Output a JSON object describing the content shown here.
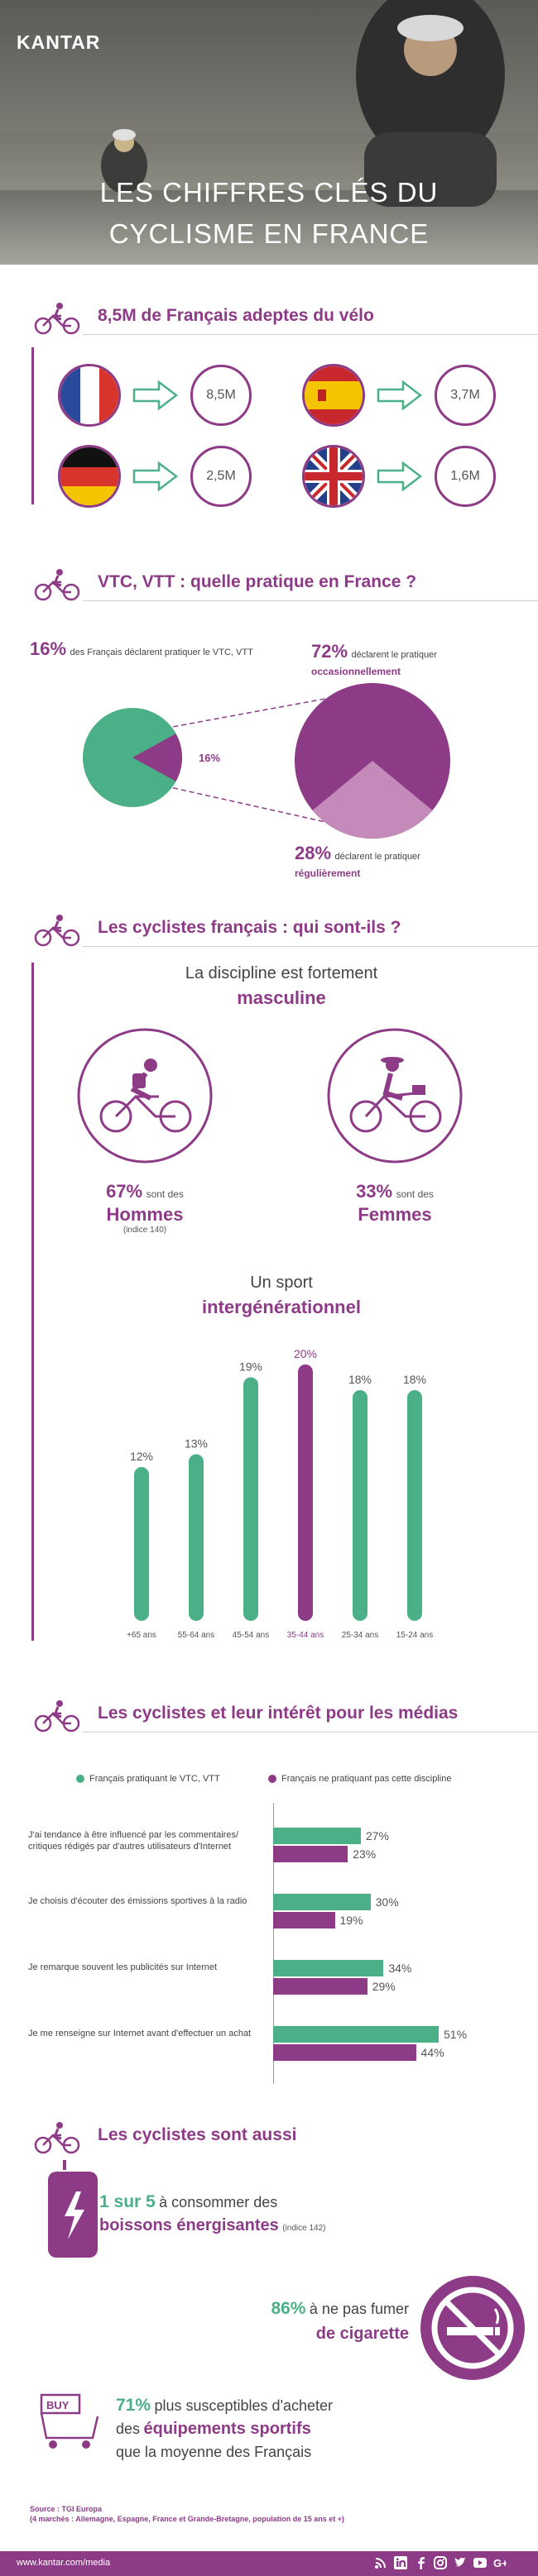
{
  "brand": "KANTAR",
  "hero": {
    "title_line1": "LES CHIFFRES CLÉS DU",
    "title_line2": "CYCLISME EN FRANCE"
  },
  "sections": {
    "s1": "8,5M de Français adeptes du vélo",
    "s2": "VTC, VTT : quelle pratique en France ?",
    "s3": "Les cyclistes français : qui sont-ils ?",
    "s4": "Les cyclistes et leur intérêt pour les médias",
    "s5": "Les cyclistes sont aussi"
  },
  "countries": [
    {
      "flag": "france-flag",
      "value": "8,5M"
    },
    {
      "flag": "spain-flag",
      "value": "3,7M"
    },
    {
      "flag": "germany-flag",
      "value": "2,5M"
    },
    {
      "flag": "uk-flag",
      "value": "1,6M"
    }
  ],
  "practice": {
    "p16_pct": "16%",
    "p16_text": "des Français déclarent pratiquer le VTC, VTT",
    "p16_slice": "16%",
    "p72_pct": "72%",
    "p72_text": "déclarent le pratiquer",
    "p72_highlight": "occasionnellement",
    "p28_pct": "28%",
    "p28_text": "déclarent le pratiquer",
    "p28_highlight": "régulièrement",
    "chart_data": {
      "type": "pie",
      "pies": [
        {
          "name": "",
          "slices": [
            {
              "label": "Pratiquent VTC, VTT",
              "value": 16
            },
            {
              "label": "",
              "value": 84
            }
          ]
        },
        {
          "name": "",
          "slices": [
            {
              "label": "occasionnellement",
              "value": 72
            },
            {
              "label": "régulièrement",
              "value": 28
            }
          ]
        }
      ]
    }
  },
  "who": {
    "gender_title": "La discipline est fortement",
    "gender_highlight": "masculine",
    "men_pct": "67%",
    "men_text": "sont des",
    "men_label": "Hommes",
    "men_index": "(indice 140)",
    "women_pct": "33%",
    "women_text": "sont des",
    "women_label": "Femmes",
    "age_title": "Un sport",
    "age_highlight": "intergénérationnel"
  },
  "chart_data": [
    {
      "type": "bar",
      "categories": [
        "+65 ans",
        "55-64 ans",
        "45-54 ans",
        "35-44 ans",
        "25-34 ans",
        "15-24 ans"
      ],
      "values": [
        12,
        13,
        19,
        20,
        18,
        18
      ],
      "value_labels": [
        "12%",
        "13%",
        "19%",
        "20%",
        "18%",
        "18%"
      ],
      "highlight_index": 3,
      "colors": {
        "default": "#4bb087",
        "highlight": "#8e3b87"
      },
      "ylim": [
        0,
        20
      ]
    },
    {
      "type": "bar",
      "orientation": "horizontal",
      "series": [
        {
          "name": "Français pratiquant le VTC, VTT",
          "color": "#4bb087",
          "values": [
            27,
            30,
            34,
            51
          ],
          "value_labels": [
            "27%",
            "30%",
            "34%",
            "51%"
          ]
        },
        {
          "name": "Français ne pratiquant pas cette discipline",
          "color": "#8e3b87",
          "values": [
            23,
            19,
            29,
            44
          ],
          "value_labels": [
            "23%",
            "19%",
            "29%",
            "44%"
          ]
        }
      ],
      "categories": [
        "J'ai tendance à être influencé par les commentaires/ critiques rédigés par d'autres utilisateurs d'Internet",
        "Je choisis d'écouter des émissions sportives à la radio",
        "Je remarque souvent les publicités sur Internet",
        "Je me renseigne sur Internet avant d'effectuer un achat"
      ],
      "xlim": [
        0,
        55
      ]
    }
  ],
  "media": {
    "legend_green": "Français pratiquant le VTC, VTT",
    "legend_purple": "Français ne pratiquant pas cette discipline"
  },
  "also": {
    "energy_pct": "1 sur 5",
    "energy_text": "à consommer des",
    "energy_highlight": "boissons énergisantes",
    "energy_index": "(indice 142)",
    "smoke_pct": "86%",
    "smoke_text": "à ne pas fumer",
    "smoke_highlight": "de cigarette",
    "buy_pct": "71%",
    "buy_text": "plus susceptibles d'acheter",
    "buy_text2": "des",
    "buy_highlight": "équipements sportifs",
    "buy_text3": "que la moyenne des Français",
    "buy_icon_text": "BUY"
  },
  "source": {
    "title": "Source : TGI Europa",
    "text": "(4 marchés : Allemagne, Espagne, France et Grande-Bretagne, population de 15 ans et +)"
  },
  "footer": {
    "url": "www.kantar.com/media"
  },
  "colors": {
    "purple": "#8e3b87",
    "green": "#4bb087",
    "light_purple": "#c48ab9"
  }
}
